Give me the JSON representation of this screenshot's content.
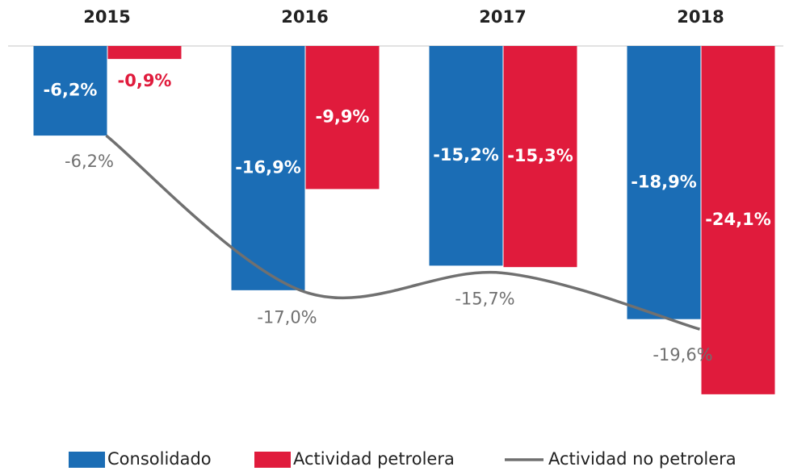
{
  "chart_data": {
    "type": "bar",
    "categories": [
      "2015",
      "2016",
      "2017",
      "2018"
    ],
    "series": [
      {
        "name": "Consolidado",
        "color": "#1b6db5",
        "values": [
          -6.2,
          -16.9,
          -15.2,
          -18.9
        ],
        "value_labels": [
          "-6,2%",
          "-16,9%",
          "-15,2%",
          "-18,9%"
        ]
      },
      {
        "name": "Actividad petrolera",
        "color": "#e01b3c",
        "values": [
          -0.9,
          -9.9,
          -15.3,
          -24.1
        ],
        "value_labels": [
          "-0,9%",
          "-9,9%",
          "-15,3%",
          "-24,1%"
        ]
      },
      {
        "name": "Actividad no petrolera",
        "type": "line",
        "color": "#707070",
        "values": [
          -6.2,
          -17.0,
          -15.7,
          -19.6
        ],
        "value_labels": [
          "-6,2%",
          "-17,0%",
          "-15,7%",
          "-19,6%"
        ]
      }
    ],
    "ylim": [
      -25,
      0
    ],
    "legend": "bottom"
  }
}
